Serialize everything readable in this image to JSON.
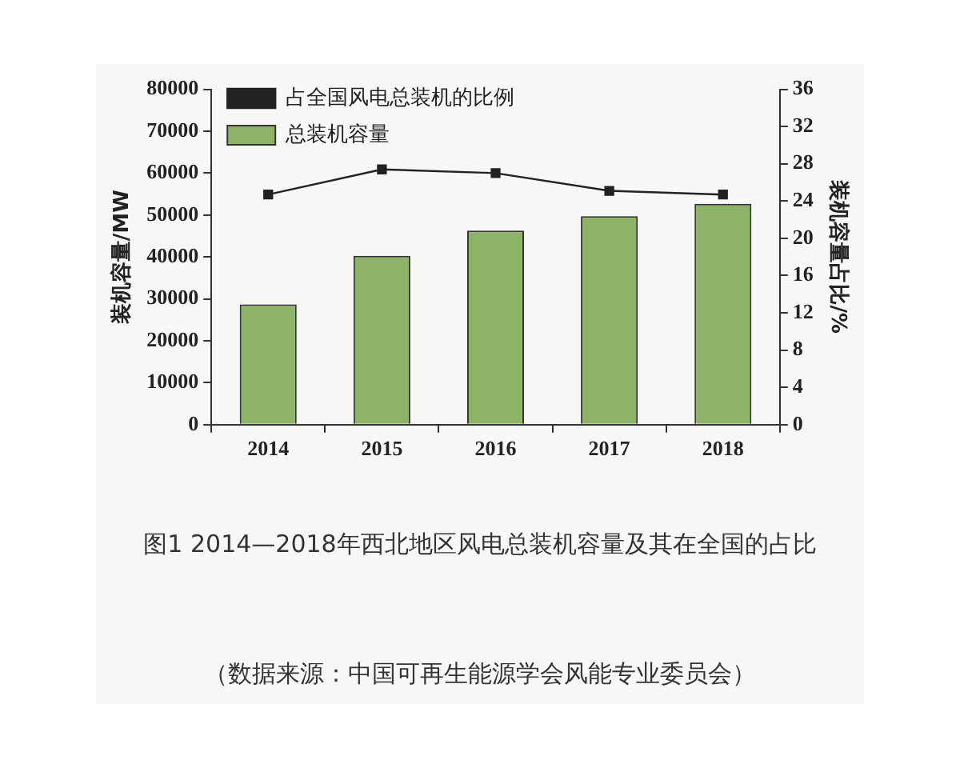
{
  "chart_data": {
    "type": "bar",
    "title": "图1 2014—2018年西北地区风电总装机容量及其在全国的占比",
    "annotations": [
      "（数据来源：中国可再生能源学会风能专业委员会）"
    ],
    "ylabel": "装机容量/MW",
    "y2label": "装机容量占比/%",
    "categories": [
      "2014",
      "2015",
      "2016",
      "2017",
      "2018"
    ],
    "series": [
      {
        "name": "总装机容量",
        "color": "#8db369",
        "values": [
          28700,
          40300,
          46300,
          49700,
          52700
        ]
      },
      {
        "name": "占全国风电总装机的比例",
        "type": "line",
        "axis": "y2",
        "color": "#222222",
        "marker": "square",
        "values": [
          24.7,
          27.4,
          27.0,
          25.1,
          24.7
        ]
      }
    ],
    "ylim": [
      0,
      80000
    ],
    "yticks": [
      0,
      10000,
      20000,
      30000,
      40000,
      50000,
      60000,
      70000,
      80000
    ],
    "y2lim": [
      0,
      36
    ],
    "y2ticks": [
      0,
      4,
      8,
      12,
      16,
      20,
      24,
      28,
      32,
      36
    ],
    "grid": false,
    "legend": "top left"
  }
}
